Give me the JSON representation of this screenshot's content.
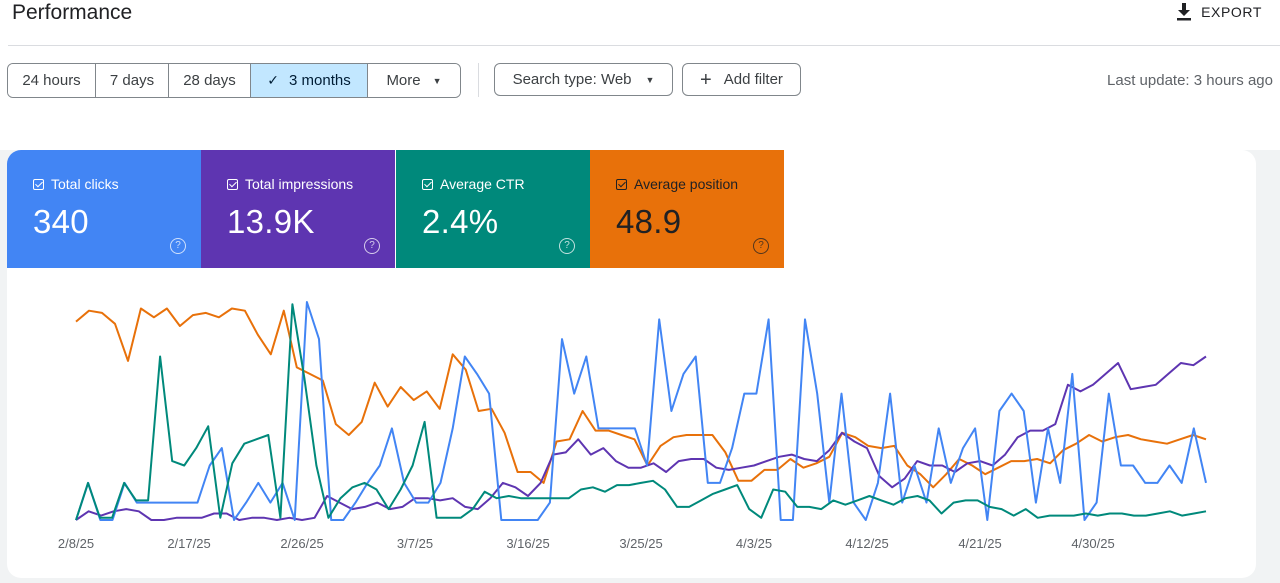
{
  "header": {
    "title": "Performance",
    "export_label": "EXPORT"
  },
  "filters": {
    "date_ranges": [
      {
        "label": "24 hours",
        "active": false
      },
      {
        "label": "7 days",
        "active": false
      },
      {
        "label": "28 days",
        "active": false
      },
      {
        "label": "3 months",
        "active": true
      },
      {
        "label": "More",
        "active": false
      }
    ],
    "search_type_label": "Search type: Web",
    "add_filter_label": "Add filter",
    "last_update": "Last update: 3 hours ago"
  },
  "metrics": [
    {
      "label": "Total clicks",
      "value": "340",
      "color": "#4285f4",
      "text_color": "#ffffff"
    },
    {
      "label": "Total impressions",
      "value": "13.9K",
      "color": "#5e35b1",
      "text_color": "#ffffff"
    },
    {
      "label": "Average CTR",
      "value": "2.4%",
      "color": "#00897b",
      "text_color": "#ffffff"
    },
    {
      "label": "Average position",
      "value": "48.9",
      "color": "#e8710a",
      "text_color": "#202124"
    }
  ],
  "chart_data": {
    "type": "line",
    "x_tick_labels": [
      "2/8/25",
      "2/17/25",
      "2/26/25",
      "3/7/25",
      "3/16/25",
      "3/25/25",
      "4/3/25",
      "4/12/25",
      "4/21/25",
      "4/30/25"
    ],
    "x_tick_day_index": [
      0,
      9,
      18,
      27,
      36,
      45,
      54,
      63,
      72,
      81
    ],
    "grid": false,
    "y_axis_labels_visible": false,
    "note_scale": "Relative 0-100 level per series; each series is independently scaled and no y-axis values are printed",
    "series": [
      {
        "name": "Average position",
        "color": "#e8710a",
        "values": [
          91,
          96,
          95,
          90,
          73,
          97,
          93,
          97,
          89,
          94,
          95,
          93,
          97,
          96,
          85,
          76,
          96,
          70,
          67,
          64,
          44,
          39,
          45,
          63,
          52,
          61,
          55,
          59,
          51,
          76,
          69,
          50,
          51,
          40,
          22,
          22,
          17,
          36,
          37,
          50,
          41,
          41,
          39,
          37,
          25,
          34,
          38,
          39,
          39,
          39,
          31,
          18,
          18,
          23,
          23,
          28,
          24,
          26,
          29,
          40,
          38,
          34,
          33,
          34,
          25,
          21,
          15,
          21,
          28,
          25,
          21,
          24,
          27,
          27,
          28,
          26,
          32,
          35,
          39,
          36,
          38,
          39,
          37,
          36,
          35,
          37,
          39,
          37
        ]
      },
      {
        "name": "Total impressions",
        "color": "#5e35b1",
        "values": [
          0,
          4,
          2,
          4,
          5,
          4,
          0,
          0,
          1,
          1,
          1,
          3,
          3,
          0,
          1,
          1,
          0,
          1,
          0,
          1,
          11,
          8,
          5,
          6,
          8,
          5,
          6,
          10,
          10,
          9,
          10,
          6,
          5,
          10,
          17,
          15,
          11,
          17,
          30,
          31,
          37,
          30,
          33,
          27,
          24,
          24,
          26,
          22,
          27,
          28,
          28,
          24,
          23,
          24,
          25,
          27,
          29,
          30,
          28,
          27,
          32,
          40,
          36,
          33,
          20,
          15,
          19,
          27,
          25,
          25,
          22,
          26,
          27,
          25,
          30,
          38,
          41,
          41,
          44,
          62,
          59,
          62,
          67,
          72,
          60,
          61,
          62,
          67,
          72,
          71,
          75
        ]
      },
      {
        "name": "Total clicks",
        "color": "#4285f4",
        "values": [
          0,
          17,
          0,
          0,
          17,
          8,
          8,
          8,
          8,
          8,
          8,
          25,
          33,
          0,
          8,
          17,
          8,
          17,
          0,
          100,
          83,
          0,
          0,
          8,
          17,
          25,
          42,
          17,
          8,
          8,
          17,
          42,
          75,
          67,
          58,
          0,
          0,
          0,
          0,
          8,
          83,
          58,
          75,
          42,
          42,
          42,
          42,
          25,
          92,
          50,
          67,
          75,
          17,
          17,
          33,
          58,
          58,
          92,
          0,
          0,
          92,
          58,
          8,
          58,
          8,
          0,
          17,
          58,
          8,
          25,
          8,
          42,
          17,
          33,
          42,
          0,
          50,
          58,
          50,
          8,
          42,
          17,
          67,
          0,
          8,
          58,
          25,
          25,
          17,
          17,
          25,
          17,
          42,
          17
        ]
      },
      {
        "name": "Average CTR",
        "color": "#00897b",
        "values": [
          0,
          17,
          1,
          1,
          17,
          9,
          9,
          75,
          27,
          25,
          33,
          43,
          1,
          26,
          35,
          37,
          39,
          1,
          99,
          65,
          25,
          1,
          10,
          15,
          17,
          14,
          5,
          14,
          25,
          45,
          1,
          1,
          1,
          5,
          13,
          10,
          11,
          10,
          10,
          10,
          10,
          10,
          14,
          15,
          13,
          16,
          16,
          17,
          18,
          14,
          6,
          6,
          9,
          12,
          14,
          16,
          5,
          1,
          14,
          13,
          6,
          6,
          5,
          9,
          7,
          9,
          11,
          9,
          7,
          10,
          11,
          9,
          3,
          8,
          9,
          9,
          6,
          5,
          2,
          5,
          1,
          2,
          2,
          2,
          3,
          2,
          3,
          3,
          2,
          2,
          3,
          4,
          2,
          3,
          4
        ]
      }
    ]
  }
}
